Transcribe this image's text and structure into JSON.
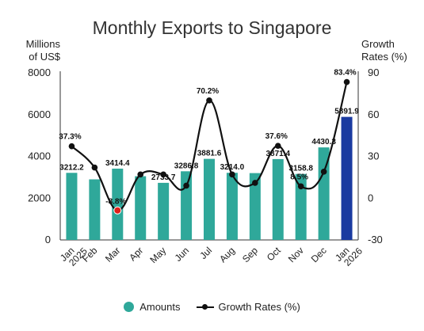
{
  "chart_data": {
    "type": "bar",
    "title": "Monthly Exports to Singapore",
    "ylabel_left": "Millions\nof US$",
    "ylabel_right": "Growth\nRates (%)",
    "categories": [
      "Jan\n2025",
      "Feb",
      "Mar",
      "Apr",
      "May",
      "Jun",
      "Jul",
      "Aug",
      "Sep",
      "Oct",
      "Nov",
      "Dec",
      "Jan\n2026"
    ],
    "series": [
      {
        "name": "Amounts",
        "type": "bar",
        "axis": "left",
        "values": [
          3212.2,
          2900,
          3414.4,
          3050,
          2733.7,
          3286.8,
          3881.6,
          3214.0,
          3200,
          3871.4,
          3158.8,
          4430.3,
          5891.9
        ],
        "labels": [
          "3212.2",
          "",
          "3414.4",
          "",
          "2733.7",
          "3286.8",
          "3881.6",
          "3214.0",
          "",
          "3871.4",
          "3158.8",
          "4430.3",
          "5891.9"
        ]
      },
      {
        "name": "Growth Rates (%)",
        "type": "line",
        "axis": "right",
        "values": [
          37.3,
          22,
          -8.8,
          17,
          17,
          9,
          70.2,
          17,
          11,
          37.6,
          8.5,
          19,
          83.4
        ],
        "labels": [
          "37.3%",
          "",
          "-8.8%",
          "",
          "",
          "",
          "70.2%",
          "",
          "",
          "37.6%",
          "8.5%",
          "",
          "83.4%"
        ]
      }
    ],
    "y_left": {
      "min": 0,
      "max": 8000,
      "ticks": [
        "0",
        "2000",
        "4000",
        "6000",
        "8000"
      ]
    },
    "y_right": {
      "min": -30,
      "max": 90,
      "ticks": [
        "-30",
        "0",
        "30",
        "60",
        "90"
      ]
    },
    "grid": false,
    "legend_position": "bottom",
    "colors": {
      "bar": "#2fa89a",
      "bar_highlight": "#1a3aa0",
      "line": "#111111",
      "negative_point": "#e0201b"
    }
  },
  "legend": {
    "amounts": "Amounts",
    "growth": "Growth Rates (%)"
  }
}
